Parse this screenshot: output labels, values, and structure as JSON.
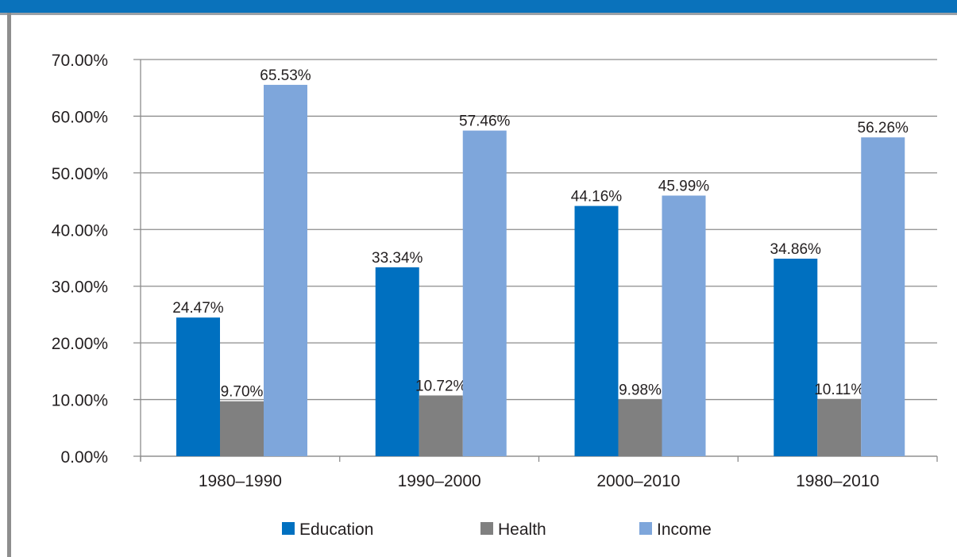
{
  "chart_data": {
    "type": "bar",
    "categories": [
      "1980–1990",
      "1990–2000",
      "2000–2010",
      "1980–2010"
    ],
    "series": [
      {
        "name": "Education",
        "values": [
          24.47,
          33.34,
          44.16,
          34.86
        ],
        "labels": [
          "24.47%",
          "33.34%",
          "44.16%",
          "34.86%"
        ],
        "color": "#0070c0"
      },
      {
        "name": "Health",
        "values": [
          9.7,
          10.72,
          9.98,
          10.11
        ],
        "labels": [
          "9.70%",
          "10.72%",
          "9.98%",
          "10.11%"
        ],
        "color": "#808080"
      },
      {
        "name": "Income",
        "values": [
          65.53,
          57.46,
          45.99,
          56.26
        ],
        "labels": [
          "65.53%",
          "57.46%",
          "45.99%",
          "56.26%"
        ],
        "color": "#7ea6db"
      }
    ],
    "ylim": [
      0,
      70
    ],
    "yticks": [
      0,
      10,
      20,
      30,
      40,
      50,
      60,
      70
    ],
    "ytick_labels": [
      "0.00%",
      "10.00%",
      "20.00%",
      "30.00%",
      "40.00%",
      "50.00%",
      "60.00%",
      "70.00%"
    ],
    "grid": true,
    "legend_position": "bottom"
  }
}
